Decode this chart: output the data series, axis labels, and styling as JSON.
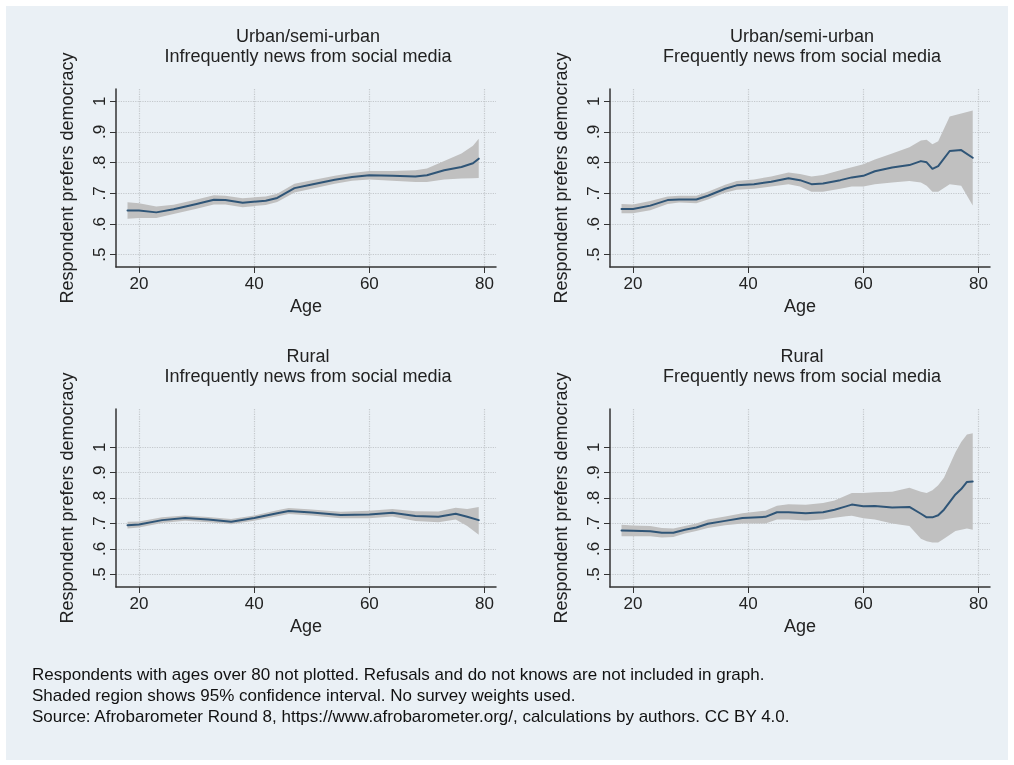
{
  "chart_data": [
    {
      "type": "line",
      "title": "Urban/semi-urban",
      "subtitle": "Infrequently news from social media",
      "xlabel": "Age",
      "ylabel": "Respondent prefers democracy",
      "xlim": [
        16,
        82
      ],
      "xticks": [
        20,
        40,
        60,
        80
      ],
      "ylim": [
        0.46,
        1.04
      ],
      "yticks": [
        {
          "value": 0.5,
          "label": ".5"
        },
        {
          "value": 0.6,
          "label": ".6"
        },
        {
          "value": 0.7,
          "label": ".7"
        },
        {
          "value": 0.8,
          "label": ".8"
        },
        {
          "value": 0.9,
          "label": ".9"
        },
        {
          "value": 1,
          "label": "1"
        }
      ],
      "grid": true,
      "series": [
        {
          "color": "#2f5577",
          "x": [
            18,
            20,
            23,
            26,
            30,
            33,
            35,
            38,
            42,
            44,
            47,
            50,
            54,
            57,
            60,
            64,
            68,
            70,
            73,
            76,
            78,
            79
          ],
          "values": [
            0.644,
            0.644,
            0.638,
            0.648,
            0.665,
            0.679,
            0.678,
            0.669,
            0.676,
            0.685,
            0.717,
            0.729,
            0.744,
            0.753,
            0.759,
            0.757,
            0.755,
            0.759,
            0.775,
            0.786,
            0.798,
            0.813
          ],
          "lower": [
            0.617,
            0.62,
            0.62,
            0.633,
            0.65,
            0.664,
            0.664,
            0.655,
            0.662,
            0.672,
            0.703,
            0.715,
            0.731,
            0.741,
            0.745,
            0.741,
            0.737,
            0.737,
            0.745,
            0.748,
            0.749,
            0.75
          ],
          "upper": [
            0.671,
            0.668,
            0.657,
            0.663,
            0.68,
            0.694,
            0.692,
            0.684,
            0.69,
            0.699,
            0.731,
            0.743,
            0.757,
            0.766,
            0.773,
            0.773,
            0.775,
            0.781,
            0.805,
            0.83,
            0.855,
            0.878
          ]
        }
      ]
    },
    {
      "type": "line",
      "title": "Urban/semi-urban",
      "subtitle": "Frequently news from social media",
      "xlabel": "Age",
      "ylabel": "Respondent prefers democracy",
      "xlim": [
        16,
        82
      ],
      "xticks": [
        20,
        40,
        60,
        80
      ],
      "ylim": [
        0.46,
        1.04
      ],
      "yticks": [
        {
          "value": 0.5,
          "label": ".5"
        },
        {
          "value": 0.6,
          "label": ".6"
        },
        {
          "value": 0.7,
          "label": ".7"
        },
        {
          "value": 0.8,
          "label": ".8"
        },
        {
          "value": 0.9,
          "label": ".9"
        },
        {
          "value": 1,
          "label": "1"
        }
      ],
      "grid": true,
      "series": [
        {
          "color": "#2f5577",
          "x": [
            18,
            20,
            23,
            26,
            28,
            31,
            33,
            36,
            38,
            41,
            44,
            47,
            49,
            51,
            53,
            56,
            58,
            60,
            62,
            65,
            68,
            70,
            71,
            72,
            73,
            75,
            77,
            79
          ],
          "values": [
            0.649,
            0.649,
            0.66,
            0.678,
            0.68,
            0.68,
            0.692,
            0.715,
            0.726,
            0.73,
            0.738,
            0.749,
            0.743,
            0.73,
            0.732,
            0.743,
            0.752,
            0.757,
            0.772,
            0.784,
            0.792,
            0.805,
            0.801,
            0.78,
            0.789,
            0.838,
            0.841,
            0.816
          ],
          "lower": [
            0.635,
            0.635,
            0.645,
            0.665,
            0.67,
            0.668,
            0.68,
            0.702,
            0.712,
            0.715,
            0.722,
            0.73,
            0.722,
            0.705,
            0.705,
            0.715,
            0.722,
            0.722,
            0.73,
            0.735,
            0.74,
            0.735,
            0.725,
            0.705,
            0.705,
            0.73,
            0.725,
            0.66
          ],
          "upper": [
            0.665,
            0.664,
            0.675,
            0.69,
            0.692,
            0.692,
            0.705,
            0.728,
            0.74,
            0.745,
            0.755,
            0.768,
            0.763,
            0.755,
            0.76,
            0.775,
            0.785,
            0.795,
            0.81,
            0.83,
            0.85,
            0.872,
            0.875,
            0.86,
            0.87,
            0.95,
            0.96,
            0.97
          ]
        }
      ]
    },
    {
      "type": "line",
      "title": "Rural",
      "subtitle": "Infrequently news from social media",
      "xlabel": "Age",
      "ylabel": "Respondent prefers democracy",
      "xlim": [
        16,
        82
      ],
      "xticks": [
        20,
        40,
        60,
        80
      ],
      "ylim": [
        0.45,
        1.15
      ],
      "yticks": [
        {
          "value": 0.5,
          "label": ".5"
        },
        {
          "value": 0.6,
          "label": ".6"
        },
        {
          "value": 0.7,
          "label": ".7"
        },
        {
          "value": 0.8,
          "label": ".8"
        },
        {
          "value": 0.9,
          "label": ".9"
        },
        {
          "value": 1,
          "label": "1"
        }
      ],
      "grid": true,
      "series": [
        {
          "color": "#2f5577",
          "x": [
            18,
            20,
            24,
            28,
            32,
            36,
            40,
            44,
            46,
            50,
            55,
            60,
            64,
            68,
            72,
            75,
            77,
            79
          ],
          "values": [
            0.693,
            0.696,
            0.713,
            0.721,
            0.715,
            0.707,
            0.721,
            0.74,
            0.749,
            0.743,
            0.733,
            0.735,
            0.742,
            0.729,
            0.726,
            0.738,
            0.726,
            0.713
          ],
          "lower": [
            0.68,
            0.684,
            0.702,
            0.711,
            0.705,
            0.697,
            0.711,
            0.728,
            0.737,
            0.731,
            0.72,
            0.72,
            0.727,
            0.71,
            0.705,
            0.715,
            0.69,
            0.655
          ],
          "upper": [
            0.707,
            0.708,
            0.724,
            0.731,
            0.725,
            0.717,
            0.731,
            0.752,
            0.761,
            0.755,
            0.746,
            0.75,
            0.757,
            0.748,
            0.747,
            0.762,
            0.757,
            0.765
          ]
        }
      ]
    },
    {
      "type": "line",
      "title": "Rural",
      "subtitle": "Frequently news from social media",
      "xlabel": "Age",
      "ylabel": "Respondent prefers democracy",
      "xlim": [
        16,
        82
      ],
      "xticks": [
        20,
        40,
        60,
        80
      ],
      "ylim": [
        0.45,
        1.15
      ],
      "yticks": [
        {
          "value": 0.5,
          "label": ".5"
        },
        {
          "value": 0.6,
          "label": ".6"
        },
        {
          "value": 0.7,
          "label": ".7"
        },
        {
          "value": 0.8,
          "label": ".8"
        },
        {
          "value": 0.9,
          "label": ".9"
        },
        {
          "value": 1,
          "label": "1"
        }
      ],
      "grid": true,
      "annotations": [
        "Respondents with ages over 80 not plotted. Refusals and do not knows are not included in graph.",
        "Shaded region shows 95% confidence interval. No survey weights used.",
        "Source: Afrobarometer Round 8, https://www.afrobarometer.org/, calculations by authors. CC BY 4.0."
      ],
      "series": [
        {
          "color": "#2f5577",
          "x": [
            18,
            20,
            23,
            25,
            27,
            29,
            31,
            33,
            36,
            39,
            43,
            45,
            47,
            50,
            53,
            55,
            57,
            58,
            60,
            62,
            65,
            68,
            70,
            71,
            72,
            73,
            74,
            76,
            77,
            78,
            79
          ],
          "values": [
            0.672,
            0.671,
            0.669,
            0.663,
            0.663,
            0.675,
            0.684,
            0.699,
            0.71,
            0.721,
            0.726,
            0.744,
            0.744,
            0.74,
            0.744,
            0.754,
            0.767,
            0.774,
            0.768,
            0.769,
            0.763,
            0.765,
            0.738,
            0.724,
            0.724,
            0.732,
            0.754,
            0.814,
            0.835,
            0.863,
            0.865
          ],
          "lower": [
            0.65,
            0.65,
            0.65,
            0.645,
            0.647,
            0.66,
            0.67,
            0.682,
            0.693,
            0.7,
            0.7,
            0.715,
            0.715,
            0.712,
            0.715,
            0.722,
            0.728,
            0.73,
            0.72,
            0.715,
            0.7,
            0.69,
            0.64,
            0.63,
            0.625,
            0.625,
            0.64,
            0.67,
            0.675,
            0.68,
            0.675
          ],
          "upper": [
            0.695,
            0.692,
            0.69,
            0.682,
            0.68,
            0.69,
            0.7,
            0.715,
            0.727,
            0.74,
            0.75,
            0.77,
            0.775,
            0.773,
            0.78,
            0.79,
            0.81,
            0.82,
            0.82,
            0.823,
            0.825,
            0.84,
            0.825,
            0.82,
            0.83,
            0.85,
            0.88,
            0.98,
            1.02,
            1.05,
            1.055
          ]
        }
      ]
    }
  ]
}
